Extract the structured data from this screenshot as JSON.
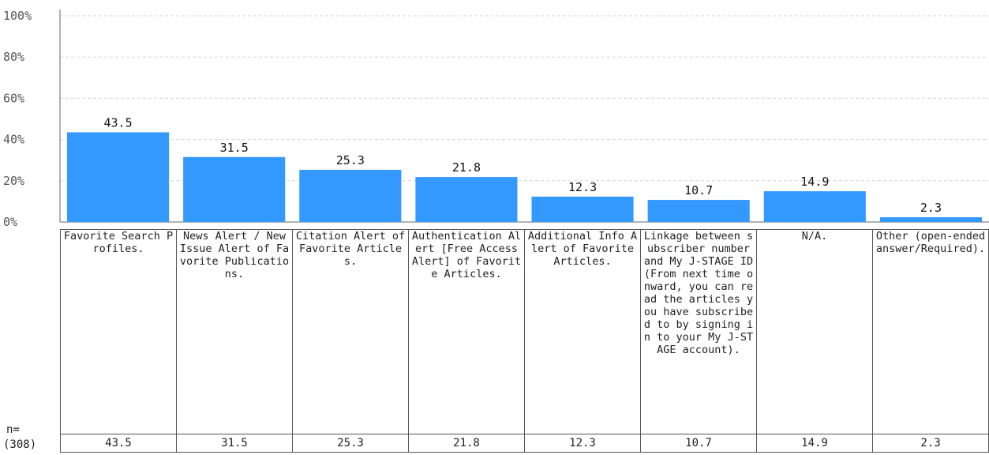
{
  "chart_data": {
    "type": "bar",
    "categories": [
      "Favorite Search Profiles.",
      "News Alert / New Issue Alert of Favorite Publications.",
      "Citation Alert of Favorite Articles.",
      "Authentication Alert [Free Access Alert] of Favorite Articles.",
      "Additional Info Alert of Favorite Articles.",
      "Linkage between subscriber number and My J-STAGE ID (From next time onward, you can read the articles you have subscribed to by signing in to your My J-STAGE account).",
      "N/A.",
      "Other (open-ended answer/Required)."
    ],
    "values": [
      43.5,
      31.5,
      25.3,
      21.8,
      12.3,
      10.7,
      14.9,
      2.3
    ],
    "value_labels": [
      "43.5",
      "31.5",
      "25.3",
      "21.8",
      "12.3",
      "10.7",
      "14.9",
      "2.3"
    ],
    "yticks": [
      "0%",
      "20%",
      "40%",
      "60%",
      "80%",
      "100%"
    ],
    "ylim": [
      0,
      100
    ],
    "grid": true,
    "bar_color": "#3399ff",
    "n_label": "n=",
    "n_value": "(308)"
  }
}
